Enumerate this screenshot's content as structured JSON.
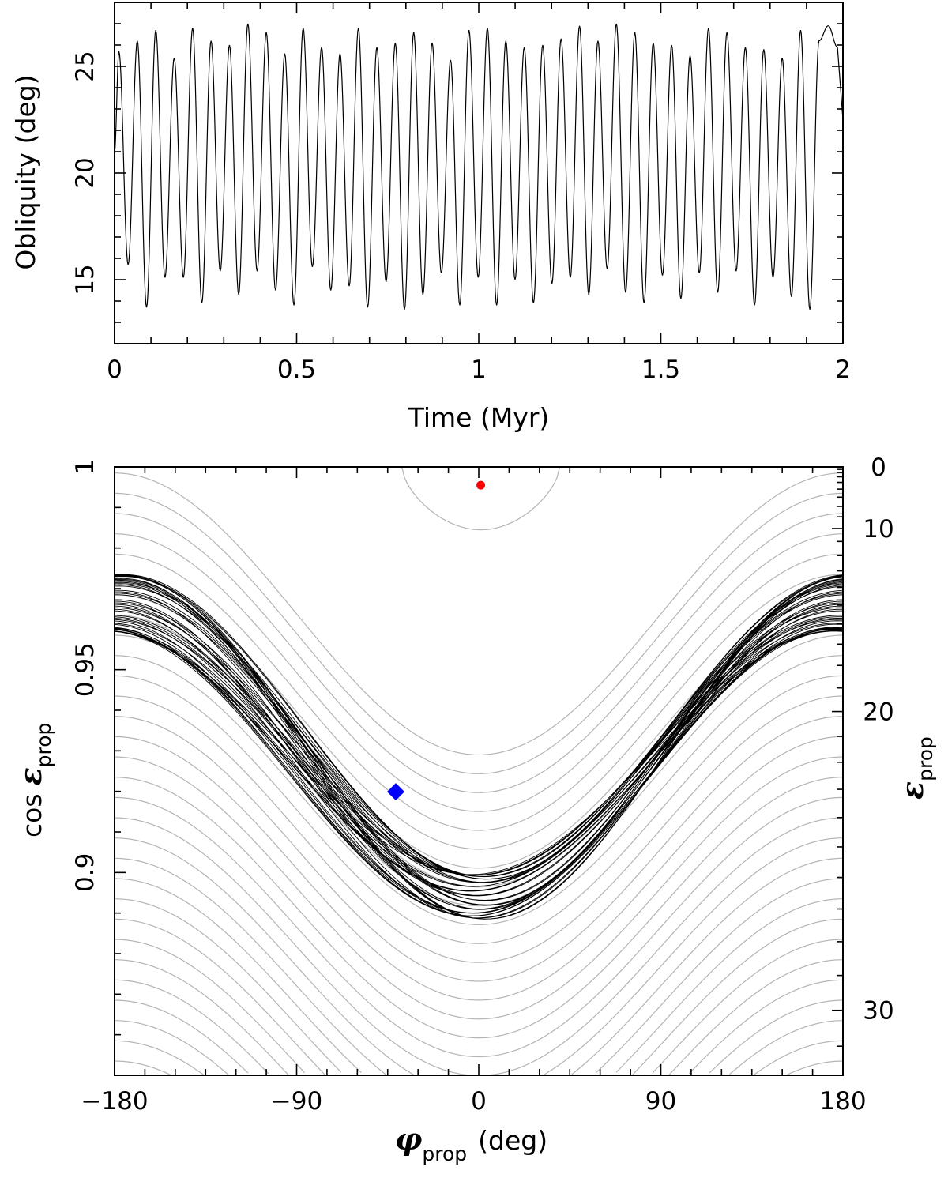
{
  "chart_data": [
    {
      "id": "obliquity-time",
      "type": "line",
      "title": "",
      "xlabel": "Time (Myr)",
      "ylabel": "Obliquity (deg)",
      "xlim": [
        0,
        2
      ],
      "ylim": [
        12,
        28
      ],
      "xticks": [
        0,
        0.5,
        1,
        1.5,
        2
      ],
      "xtick_labels": [
        "0",
        "0.5",
        "1",
        "1.5",
        "2"
      ],
      "yticks": [
        15,
        20,
        25
      ],
      "ytick_labels": [
        "15",
        "20",
        "25"
      ],
      "series": [
        {
          "name": "obliquity",
          "color": "#000000",
          "oscillation_period_myr": 0.0516,
          "maxima": [
            25.7,
            26.2,
            26.7,
            25.4,
            26.8,
            26.2,
            26.0,
            27.0,
            26.6,
            25.6,
            26.8,
            25.9,
            25.6,
            26.8,
            25.9,
            26.1,
            26.6,
            26.1,
            25.3,
            26.7,
            26.8,
            26.2,
            25.9,
            26.0,
            26.3,
            26.9,
            26.2,
            27.0,
            26.6,
            26.1,
            26.0,
            25.5,
            26.8,
            26.6,
            25.9,
            25.8,
            25.4,
            26.7,
            26.2,
            26.9,
            25.9
          ],
          "minima": [
            15.7,
            13.7,
            15.1,
            15.1,
            13.9,
            15.4,
            14.3,
            15.4,
            14.5,
            13.8,
            15.6,
            14.5,
            14.7,
            13.7,
            14.9,
            13.6,
            14.3,
            15.3,
            13.8,
            15.1,
            13.8,
            15.0,
            13.9,
            14.8,
            15.1,
            14.3,
            15.5,
            14.4,
            13.9,
            15.2,
            14.1,
            15.3,
            14.4,
            15.4,
            13.8,
            15.1,
            14.2,
            13.6,
            15.3,
            14.9,
            14.3
          ]
        }
      ]
    },
    {
      "id": "phase-portrait",
      "type": "line",
      "title": "",
      "xlabel_symbol": "φ",
      "xlabel_sub": "prop",
      "xlabel_unit": "(deg)",
      "ylabel_prefix": "cos",
      "ylabel_symbol": "ε",
      "ylabel_sub": "prop",
      "y2label_symbol": "ε",
      "y2label_sub": "prop",
      "xlim": [
        -180,
        180
      ],
      "ylim": [
        0.85,
        1.0
      ],
      "xticks": [
        -180,
        -90,
        0,
        90,
        180
      ],
      "xtick_labels": [
        "−180",
        "−90",
        "0",
        "90",
        "180"
      ],
      "yticks": [
        0.9,
        0.95,
        1.0
      ],
      "ytick_labels": [
        "0.9",
        "0.95",
        "1"
      ],
      "y2ticks_deg": [
        0,
        10,
        20,
        30
      ],
      "y2tick_labels": [
        "0",
        "10",
        "20",
        "30"
      ],
      "level_curves": {
        "color": "#b4b4b4",
        "description": "Hamiltonian level curves",
        "y_at_phi_minus180": [
          0.9985,
          0.9935,
          0.9885,
          0.9835,
          0.9785,
          0.9735,
          0.9685,
          0.9635,
          0.9585,
          0.9535,
          0.9485,
          0.9435,
          0.9385,
          0.9335,
          0.9285,
          0.9235,
          0.9185,
          0.9135,
          0.9085,
          0.9035,
          0.8985,
          0.8935,
          0.8885,
          0.8835,
          0.8785,
          0.8735,
          0.8685,
          0.8635,
          0.8585,
          0.8535
        ],
        "amplitude": 0.0696,
        "closed_island_y_min": 0.9845,
        "closed_island_phi_range": [
          -38,
          40
        ]
      },
      "trajectory": {
        "color": "#000000",
        "y_at_phi_0_range": [
          0.8885,
          0.8995
        ],
        "y_at_phi_180_range": [
          0.9595,
          0.9735
        ],
        "loops": 40
      },
      "markers": [
        {
          "name": "current state",
          "shape": "diamond",
          "color": "#0000ff",
          "x": -41,
          "y": 0.9199
        },
        {
          "name": "equilibrium",
          "shape": "circle",
          "color": "#ff0000",
          "x": 1,
          "y": 0.9955
        }
      ]
    }
  ]
}
